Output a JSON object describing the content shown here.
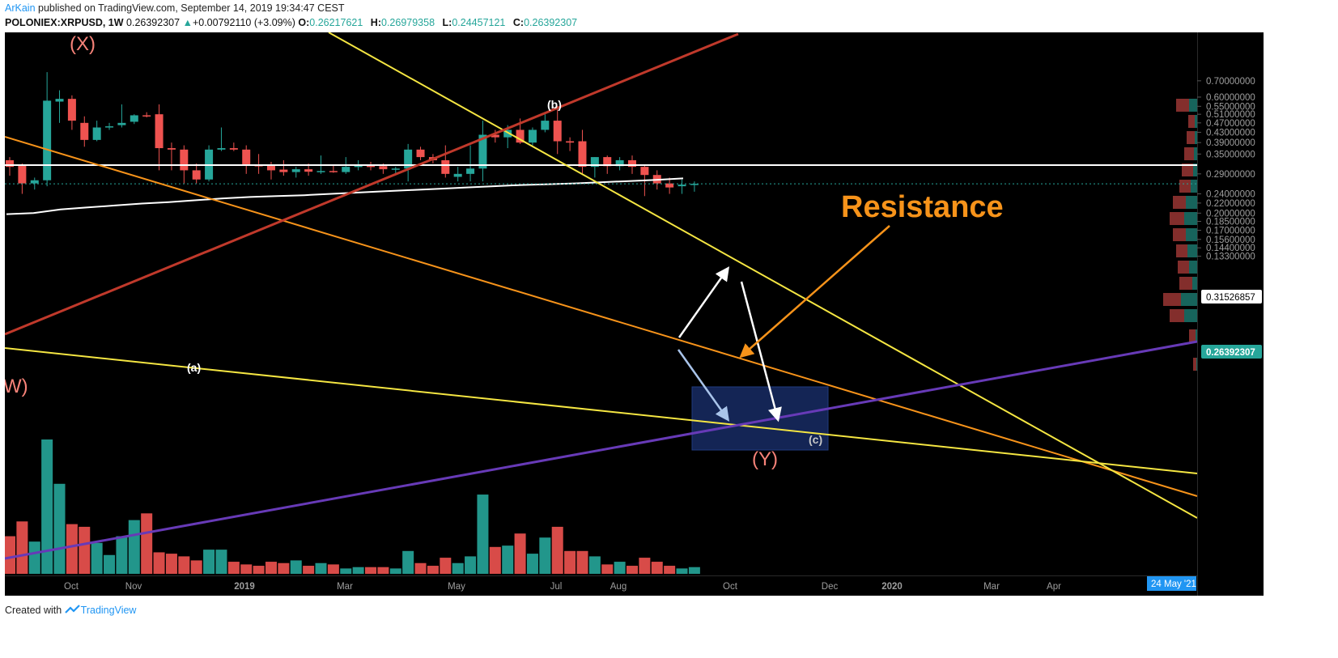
{
  "header": {
    "author": "ArKain",
    "published_text": "published on TradingView.com, September 14, 2019 19:34:47 CEST",
    "symbol": "POLONIEX:XRPUSD, 1W",
    "last": "0.26392307",
    "change": "+0.00792110 (+3.09%)",
    "change_icon": "triangle-up-icon",
    "o_label": "O:",
    "o_value": "0.26217621",
    "h_label": "H:",
    "h_value": "0.26979358",
    "l_label": "L:",
    "l_value": "0.24457121",
    "c_label": "C:",
    "c_value": "0.26392307"
  },
  "footer": {
    "created_text": "Created with",
    "brand": "TradingView",
    "brand_icon": "tradingview-logo-icon"
  },
  "colors": {
    "background": "#000000",
    "up": "#26a69a",
    "down": "#ef5350",
    "resistance": "#f7931a",
    "yellow_line": "#f5e642",
    "red_line": "#c0392b",
    "purple_line": "#673ab7",
    "white": "#ffffff",
    "box": "#1a2f6b",
    "wave_label": "#f88379",
    "price_tag_bg": "#26a69a",
    "date_tag_bg": "#2196f3"
  },
  "chart_data": {
    "type": "candlestick",
    "scale": "log",
    "interval": "1W",
    "ylim": [
      0.125,
      0.75
    ],
    "grid": false,
    "y_ticks": [
      "0.70000000",
      "0.60000000",
      "0.55000000",
      "0.51000000",
      "0.47000000",
      "0.43000000",
      "0.39000000",
      "0.35000000",
      "0.29000000",
      "0.24000000",
      "0.22000000",
      "0.20000000",
      "0.18500000",
      "0.17000000",
      "0.15600000",
      "0.14400000",
      "0.13300000"
    ],
    "x_ticks": [
      "Oct",
      "Nov",
      "2019",
      "Mar",
      "May",
      "Jul",
      "Aug",
      "Oct",
      "Dec",
      "2020",
      "Mar",
      "Apr"
    ],
    "candles": [
      {
        "o": 0.33,
        "h": 0.34,
        "l": 0.285,
        "c": 0.31
      },
      {
        "o": 0.315,
        "h": 0.32,
        "l": 0.24,
        "c": 0.265
      },
      {
        "o": 0.265,
        "h": 0.28,
        "l": 0.25,
        "c": 0.273
      },
      {
        "o": 0.273,
        "h": 0.76,
        "l": 0.258,
        "c": 0.58
      },
      {
        "o": 0.575,
        "h": 0.64,
        "l": 0.47,
        "c": 0.59
      },
      {
        "o": 0.59,
        "h": 0.61,
        "l": 0.44,
        "c": 0.48
      },
      {
        "o": 0.47,
        "h": 0.5,
        "l": 0.375,
        "c": 0.4
      },
      {
        "o": 0.4,
        "h": 0.48,
        "l": 0.395,
        "c": 0.45
      },
      {
        "o": 0.45,
        "h": 0.47,
        "l": 0.44,
        "c": 0.455
      },
      {
        "o": 0.46,
        "h": 0.56,
        "l": 0.45,
        "c": 0.47
      },
      {
        "o": 0.475,
        "h": 0.51,
        "l": 0.465,
        "c": 0.505
      },
      {
        "o": 0.505,
        "h": 0.52,
        "l": 0.495,
        "c": 0.5
      },
      {
        "o": 0.51,
        "h": 0.56,
        "l": 0.3,
        "c": 0.37
      },
      {
        "o": 0.37,
        "h": 0.39,
        "l": 0.3,
        "c": 0.365
      },
      {
        "o": 0.365,
        "h": 0.38,
        "l": 0.265,
        "c": 0.3
      },
      {
        "o": 0.3,
        "h": 0.32,
        "l": 0.265,
        "c": 0.275
      },
      {
        "o": 0.275,
        "h": 0.38,
        "l": 0.27,
        "c": 0.365
      },
      {
        "o": 0.365,
        "h": 0.45,
        "l": 0.36,
        "c": 0.37
      },
      {
        "o": 0.37,
        "h": 0.39,
        "l": 0.36,
        "c": 0.365
      },
      {
        "o": 0.365,
        "h": 0.38,
        "l": 0.29,
        "c": 0.315
      },
      {
        "o": 0.315,
        "h": 0.35,
        "l": 0.29,
        "c": 0.313
      },
      {
        "o": 0.315,
        "h": 0.325,
        "l": 0.275,
        "c": 0.3
      },
      {
        "o": 0.302,
        "h": 0.33,
        "l": 0.285,
        "c": 0.295
      },
      {
        "o": 0.295,
        "h": 0.31,
        "l": 0.28,
        "c": 0.303
      },
      {
        "o": 0.303,
        "h": 0.32,
        "l": 0.285,
        "c": 0.296
      },
      {
        "o": 0.296,
        "h": 0.345,
        "l": 0.29,
        "c": 0.298
      },
      {
        "o": 0.298,
        "h": 0.315,
        "l": 0.293,
        "c": 0.295
      },
      {
        "o": 0.295,
        "h": 0.34,
        "l": 0.29,
        "c": 0.31
      },
      {
        "o": 0.31,
        "h": 0.33,
        "l": 0.3,
        "c": 0.313
      },
      {
        "o": 0.313,
        "h": 0.325,
        "l": 0.3,
        "c": 0.312
      },
      {
        "o": 0.312,
        "h": 0.32,
        "l": 0.29,
        "c": 0.303
      },
      {
        "o": 0.303,
        "h": 0.31,
        "l": 0.29,
        "c": 0.305
      },
      {
        "o": 0.305,
        "h": 0.385,
        "l": 0.27,
        "c": 0.365
      },
      {
        "o": 0.365,
        "h": 0.375,
        "l": 0.33,
        "c": 0.34
      },
      {
        "o": 0.34,
        "h": 0.35,
        "l": 0.32,
        "c": 0.33
      },
      {
        "o": 0.33,
        "h": 0.38,
        "l": 0.28,
        "c": 0.29
      },
      {
        "o": 0.282,
        "h": 0.31,
        "l": 0.27,
        "c": 0.29
      },
      {
        "o": 0.29,
        "h": 0.38,
        "l": 0.27,
        "c": 0.305
      },
      {
        "o": 0.305,
        "h": 0.48,
        "l": 0.27,
        "c": 0.42
      },
      {
        "o": 0.42,
        "h": 0.44,
        "l": 0.39,
        "c": 0.41
      },
      {
        "o": 0.41,
        "h": 0.46,
        "l": 0.37,
        "c": 0.44
      },
      {
        "o": 0.44,
        "h": 0.49,
        "l": 0.385,
        "c": 0.39
      },
      {
        "o": 0.39,
        "h": 0.45,
        "l": 0.38,
        "c": 0.44
      },
      {
        "o": 0.44,
        "h": 0.51,
        "l": 0.43,
        "c": 0.48
      },
      {
        "o": 0.48,
        "h": 0.55,
        "l": 0.35,
        "c": 0.395
      },
      {
        "o": 0.395,
        "h": 0.41,
        "l": 0.36,
        "c": 0.39
      },
      {
        "o": 0.395,
        "h": 0.44,
        "l": 0.29,
        "c": 0.31
      },
      {
        "o": 0.31,
        "h": 0.34,
        "l": 0.28,
        "c": 0.34
      },
      {
        "o": 0.34,
        "h": 0.345,
        "l": 0.29,
        "c": 0.312
      },
      {
        "o": 0.312,
        "h": 0.34,
        "l": 0.3,
        "c": 0.33
      },
      {
        "o": 0.33,
        "h": 0.345,
        "l": 0.29,
        "c": 0.31
      },
      {
        "o": 0.31,
        "h": 0.315,
        "l": 0.235,
        "c": 0.287
      },
      {
        "o": 0.287,
        "h": 0.3,
        "l": 0.25,
        "c": 0.265
      },
      {
        "o": 0.265,
        "h": 0.28,
        "l": 0.24,
        "c": 0.255
      },
      {
        "o": 0.258,
        "h": 0.275,
        "l": 0.24,
        "c": 0.262
      },
      {
        "o": 0.262,
        "h": 0.27,
        "l": 0.245,
        "c": 0.264
      }
    ],
    "volume_relative": [
      0.28,
      0.39,
      0.24,
      1.0,
      0.67,
      0.37,
      0.35,
      0.23,
      0.14,
      0.28,
      0.4,
      0.45,
      0.16,
      0.15,
      0.13,
      0.1,
      0.18,
      0.18,
      0.09,
      0.07,
      0.06,
      0.09,
      0.08,
      0.1,
      0.06,
      0.08,
      0.07,
      0.04,
      0.05,
      0.05,
      0.05,
      0.04,
      0.17,
      0.08,
      0.06,
      0.12,
      0.08,
      0.13,
      0.59,
      0.2,
      0.21,
      0.3,
      0.15,
      0.27,
      0.35,
      0.17,
      0.17,
      0.13,
      0.07,
      0.09,
      0.06,
      0.12,
      0.09,
      0.06,
      0.04,
      0.05
    ],
    "sma_values": [
      0.198,
      0.2,
      0.207,
      0.211,
      0.215,
      0.219,
      0.222,
      0.226,
      0.23,
      0.233,
      0.235,
      0.237,
      0.24,
      0.243,
      0.246,
      0.249,
      0.252,
      0.255,
      0.258,
      0.261,
      0.263,
      0.265,
      0.268,
      0.271,
      0.274,
      0.278
    ],
    "horizontal_level": "0.31526857",
    "last_price_tag": "0.26392307",
    "date_tag": "24 May '21",
    "annotations": {
      "resistance": "Resistance",
      "wave_x": "(X)",
      "wave_y": "(Y)",
      "wave_w": "W)",
      "wave_a": "(a)",
      "wave_b": "(b)",
      "wave_c": "(c)"
    }
  }
}
